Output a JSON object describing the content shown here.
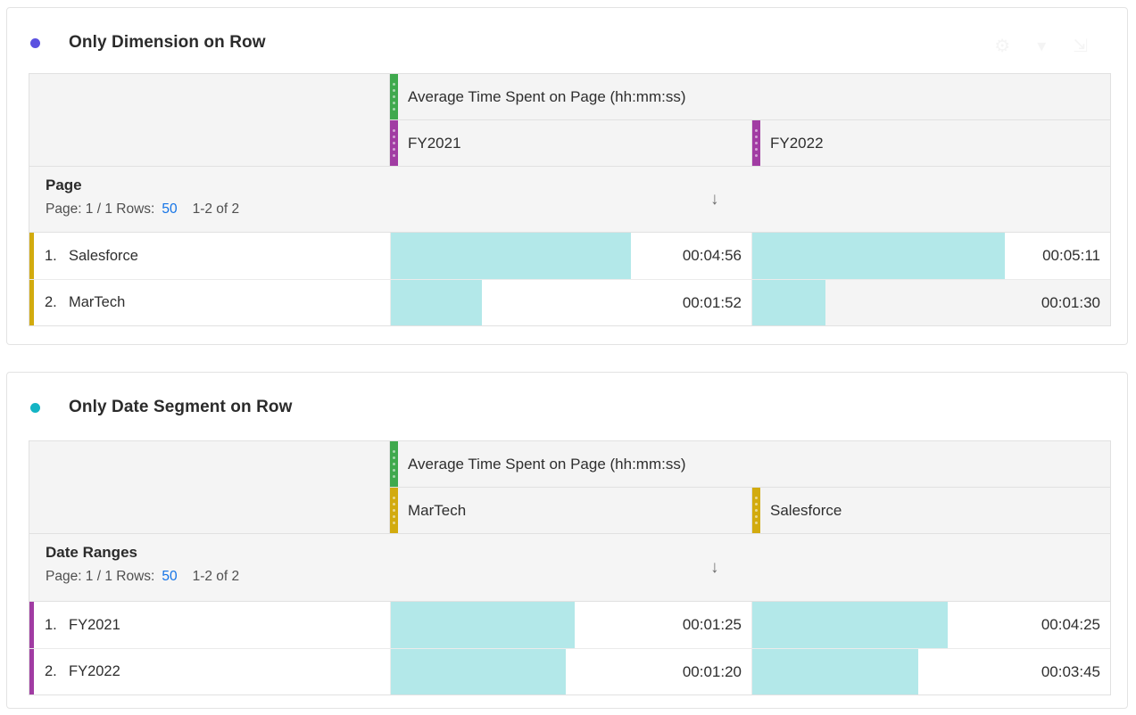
{
  "colors": {
    "metric_ribbon_green": "#3fa94d",
    "date_range_purple": "#a13ca3",
    "dimension_gold": "#d2ab0e",
    "data_bar_cyan": "#b3e8e9",
    "link_blue": "#1373e6",
    "panel1_bullet": "#5b51e0",
    "panel2_bullet": "#14b4c4",
    "header_bg": "#f4f4f4"
  },
  "panels": [
    {
      "title": "Only Dimension on Row",
      "bullet_color": "#5b51e0",
      "header_icons": [
        {
          "name": "gear-icon",
          "glyph": "⚙"
        },
        {
          "name": "chevron-down-icon",
          "glyph": "▾"
        },
        {
          "name": "fullscreen-icon",
          "glyph": "⇲"
        }
      ],
      "table": {
        "metric_header": "Average Time Spent on Page (hh:mm:ss)",
        "columns": [
          {
            "label": "FY2021",
            "type": "date-range"
          },
          {
            "label": "FY2022",
            "type": "date-range"
          }
        ],
        "row_header": "Page",
        "pagination": {
          "prefix": "Page: 1 / 1 Rows:",
          "rows_per_page": "50",
          "range": "1-2 of 2"
        },
        "sort": {
          "column": "FY2021",
          "direction": "descending",
          "glyph": "↓"
        },
        "rows": [
          {
            "num": "1.",
            "label": "Salesforce",
            "type": "dimension-item",
            "cells": [
              {
                "value": "00:04:56",
                "bar_width": "66.7%"
              },
              {
                "value": "00:05:11",
                "bar_width": "70.6%"
              }
            ]
          },
          {
            "num": "2.",
            "label": "MarTech",
            "type": "dimension-item",
            "cells": [
              {
                "value": "00:01:52",
                "bar_width": "25.2%"
              },
              {
                "value": "00:01:30",
                "bar_width": "20.4%",
                "shaded": true
              }
            ]
          }
        ]
      }
    },
    {
      "title": "Only Date Segment on Row",
      "bullet_color": "#14b4c4",
      "table": {
        "metric_header": "Average Time Spent on Page (hh:mm:ss)",
        "columns": [
          {
            "label": "MarTech",
            "type": "dimension-item"
          },
          {
            "label": "Salesforce",
            "type": "dimension-item"
          }
        ],
        "row_header": "Date Ranges",
        "pagination": {
          "prefix": "Page: 1 / 1 Rows:",
          "rows_per_page": "50",
          "range": "1-2 of 2"
        },
        "sort": {
          "column": "MarTech",
          "direction": "descending",
          "glyph": "↓"
        },
        "rows": [
          {
            "num": "1.",
            "label": "FY2021",
            "type": "date-range",
            "cells": [
              {
                "value": "00:01:25",
                "bar_width": "51.1%"
              },
              {
                "value": "00:04:25",
                "bar_width": "54.5%"
              }
            ]
          },
          {
            "num": "2.",
            "label": "FY2022",
            "type": "date-range",
            "cells": [
              {
                "value": "00:01:20",
                "bar_width": "48.6%"
              },
              {
                "value": "00:03:45",
                "bar_width": "46.5%"
              }
            ]
          }
        ]
      }
    }
  ]
}
